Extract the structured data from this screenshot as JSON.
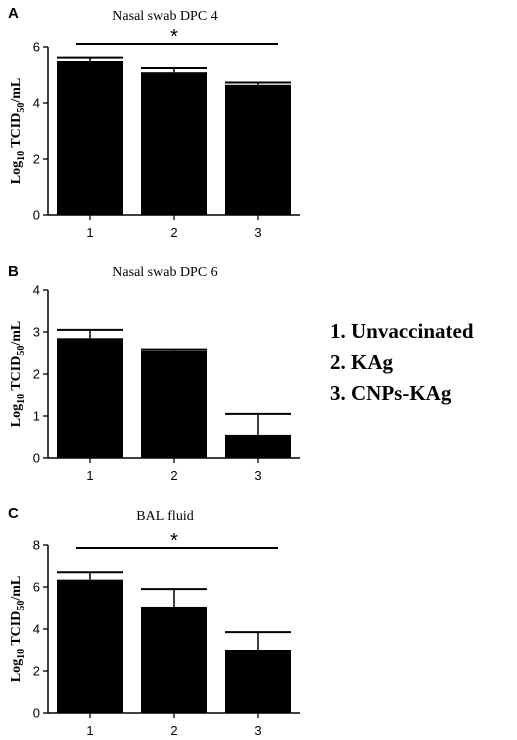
{
  "legend": {
    "items": [
      "1. Unvaccinated",
      "2. KAg",
      "3. CNPs-KAg"
    ]
  },
  "chart_data": [
    {
      "panel": "A",
      "type": "bar",
      "title": "Nasal swab DPC 4",
      "ylabel_main": "Log",
      "ylabel_sub": "10",
      "ylabel_mid": " TCID",
      "ylabel_sub2": "50",
      "ylabel_end": "/mL",
      "categories": [
        "1",
        "2",
        "3"
      ],
      "values": [
        5.5,
        5.1,
        4.65
      ],
      "errors": [
        0.12,
        0.15,
        0.08
      ],
      "ylim": [
        0,
        6
      ],
      "yticks": [
        0,
        2,
        4,
        6
      ],
      "significance": [
        {
          "from": 0,
          "to": 2,
          "label": "*"
        }
      ]
    },
    {
      "panel": "B",
      "type": "bar",
      "title": "Nasal swab DPC 6",
      "ylabel_main": "Log",
      "ylabel_sub": "10",
      "ylabel_mid": " TCID",
      "ylabel_sub2": "50",
      "ylabel_end": "/mL",
      "categories": [
        "1",
        "2",
        "3"
      ],
      "values": [
        2.85,
        2.55,
        0.55
      ],
      "errors": [
        0.2,
        0.03,
        0.5
      ],
      "ylim": [
        0,
        4
      ],
      "yticks": [
        0,
        1,
        2,
        3,
        4
      ],
      "significance": []
    },
    {
      "panel": "C",
      "type": "bar",
      "title": "BAL fluid",
      "ylabel_main": "Log",
      "ylabel_sub": "10",
      "ylabel_mid": " TCID",
      "ylabel_sub2": "50",
      "ylabel_end": "/mL",
      "categories": [
        "1",
        "2",
        "3"
      ],
      "values": [
        6.35,
        5.05,
        3.0
      ],
      "errors": [
        0.35,
        0.85,
        0.85
      ],
      "ylim": [
        0,
        8
      ],
      "yticks": [
        0,
        2,
        4,
        6,
        8
      ],
      "significance": [
        {
          "from": 0,
          "to": 2,
          "label": "*"
        }
      ]
    }
  ]
}
